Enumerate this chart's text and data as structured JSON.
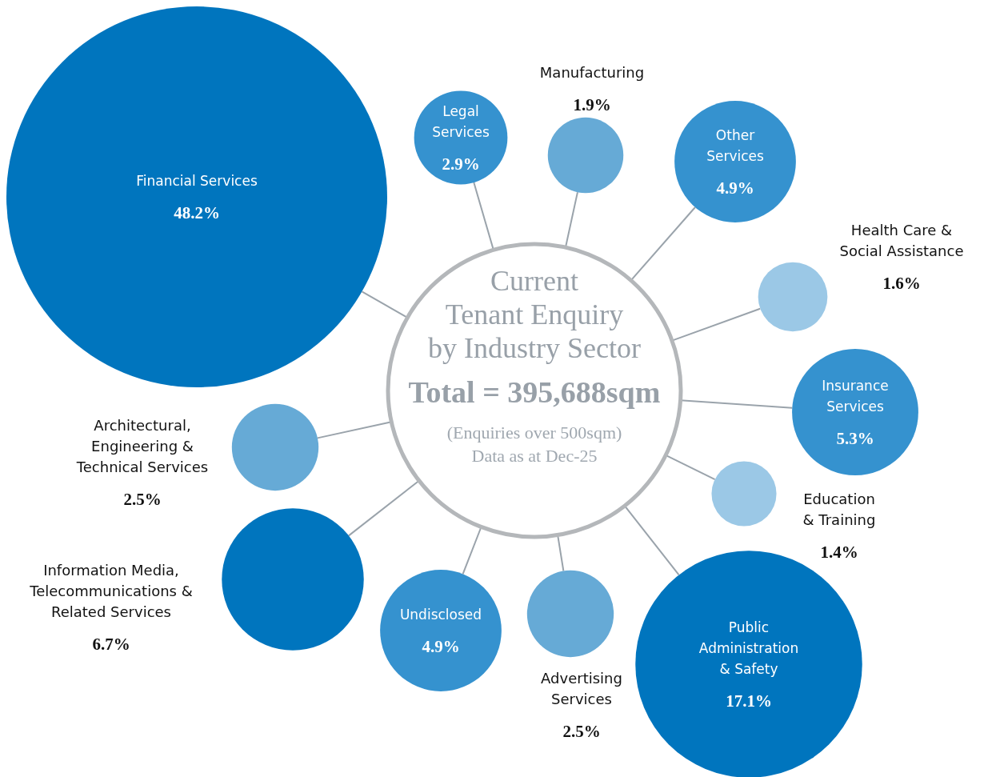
{
  "chart_data": {
    "type": "other",
    "title": "Current Tenant Enquiry by Industry Sector",
    "subtitle": "Total = 395,688sqm",
    "annotations": [
      "(Enquiries over 500sqm)",
      "Data as at Dec-25"
    ],
    "categories": [
      "Financial Services",
      "Legal Services",
      "Manufacturing",
      "Other Services",
      "Health Care & Social Assistance",
      "Insurance Services",
      "Education & Training",
      "Public Administration & Safety",
      "Advertising Services",
      "Undisclosed",
      "Information Media, Telecommunications & Related Services",
      "Architectural, Engineering & Technical Services"
    ],
    "values": [
      48.2,
      2.9,
      1.9,
      4.9,
      1.6,
      5.3,
      1.4,
      17.1,
      2.5,
      4.9,
      6.7,
      2.5
    ],
    "value_labels": [
      "48.2%",
      "2.9%",
      "1.9%",
      "4.9%",
      "1.6%",
      "5.3%",
      "1.4%",
      "17.1%",
      "2.5%",
      "4.9%",
      "6.7%",
      "2.5%"
    ],
    "colors": [
      "#0075be",
      "#3592cf",
      "#66aad6",
      "#3592cf",
      "#9bc8e6",
      "#3592cf",
      "#9bc8e6",
      "#0075be",
      "#66aad6",
      "#3592cf",
      "#0075be",
      "#66aad6"
    ]
  }
}
